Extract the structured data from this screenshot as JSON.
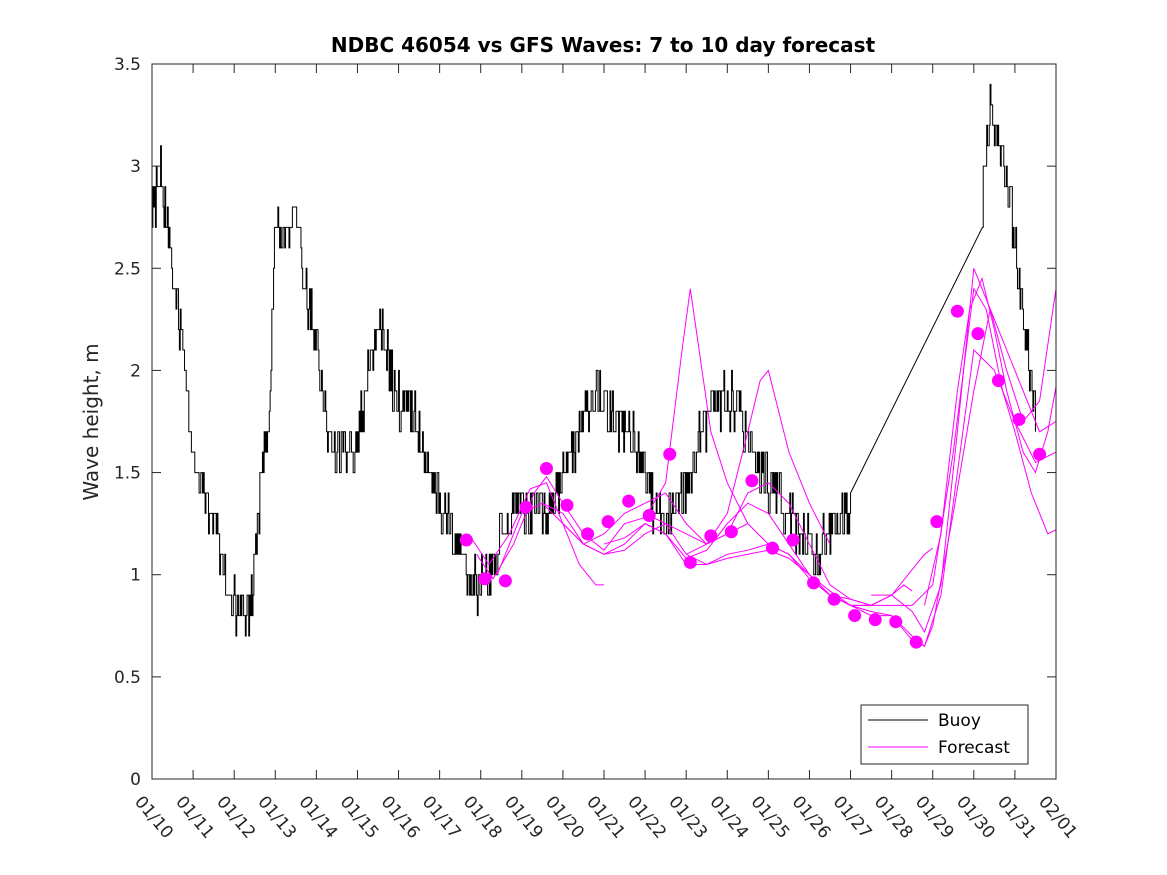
{
  "chart_data": {
    "type": "line",
    "title": "NDBC 46054 vs GFS Waves: 7 to 10 day forecast",
    "xlabel": "",
    "ylabel": "Wave height, m",
    "xlim": [
      0,
      22
    ],
    "ylim": [
      0,
      3.5
    ],
    "x_tick_values": [
      0,
      1,
      2,
      3,
      4,
      5,
      6,
      7,
      8,
      9,
      10,
      11,
      12,
      13,
      14,
      15,
      16,
      17,
      18,
      19,
      20,
      21,
      22
    ],
    "x_tick_labels": [
      "01/10",
      "01/11",
      "01/12",
      "01/13",
      "01/14",
      "01/15",
      "01/16",
      "01/17",
      "01/18",
      "01/19",
      "01/20",
      "01/21",
      "01/22",
      "01/23",
      "01/24",
      "01/25",
      "01/26",
      "01/27",
      "01/28",
      "01/29",
      "01/30",
      "01/31",
      "02/01"
    ],
    "y_tick_values": [
      0,
      0.5,
      1,
      1.5,
      2,
      2.5,
      3,
      3.5
    ],
    "y_tick_labels": [
      "0",
      "0.5",
      "1",
      "1.5",
      "2",
      "2.5",
      "3",
      "3.5"
    ],
    "legend": {
      "position": "bottom-right",
      "entries": [
        "Buoy",
        "Forecast"
      ]
    },
    "colors": {
      "buoy": "#000000",
      "forecast": "#ff00ff"
    },
    "buoy_anchors": {
      "x": [
        0.0,
        0.2,
        0.45,
        0.8,
        1.0,
        1.2,
        1.5,
        1.75,
        1.9,
        2.1,
        2.4,
        2.6,
        2.85,
        3.0,
        3.25,
        3.5,
        3.75,
        4.0,
        4.25,
        4.5,
        4.8,
        5.0,
        5.2,
        5.5,
        5.75,
        5.9,
        6.1,
        6.4,
        6.6,
        6.8,
        7.0,
        7.3,
        7.6,
        7.8,
        8.0,
        8.3,
        8.5,
        8.8,
        9.0,
        9.3,
        9.6,
        10.0,
        10.3,
        10.5,
        10.8,
        11.0,
        11.2,
        11.6,
        12.0,
        12.2,
        12.5,
        12.7,
        13.0,
        13.3,
        13.6,
        13.9,
        14.2,
        14.5,
        14.7,
        15.0,
        15.3,
        15.6,
        15.8,
        16.0,
        16.2,
        16.5,
        16.8,
        17.0,
        20.2,
        20.4,
        20.55,
        20.75,
        20.95,
        21.1,
        21.3,
        21.5
      ],
      "y": [
        2.75,
        3.0,
        2.55,
        2.05,
        1.6,
        1.45,
        1.25,
        1.05,
        0.9,
        0.8,
        0.85,
        1.3,
        1.8,
        2.75,
        2.65,
        2.75,
        2.35,
        2.15,
        1.7,
        1.6,
        1.6,
        1.65,
        1.9,
        2.25,
        2.05,
        1.85,
        1.85,
        1.75,
        1.6,
        1.45,
        1.35,
        1.25,
        1.05,
        0.95,
        0.95,
        1.05,
        1.2,
        1.35,
        1.3,
        1.25,
        1.3,
        1.45,
        1.6,
        1.75,
        1.9,
        1.85,
        1.75,
        1.7,
        1.5,
        1.35,
        1.25,
        1.3,
        1.45,
        1.65,
        1.8,
        1.85,
        1.85,
        1.7,
        1.55,
        1.45,
        1.35,
        1.25,
        1.2,
        1.15,
        1.1,
        1.2,
        1.3,
        1.3,
        2.8,
        3.35,
        3.15,
        3.0,
        2.7,
        2.4,
        2.1,
        1.8
      ],
      "noise_amplitude_m": 0.12,
      "resolution_m": 0.1
    },
    "forecast_series": [
      {
        "name": "Forecast",
        "x": [
          7.7,
          8.2,
          8.7,
          9.2,
          9.6,
          10.0,
          10.4,
          10.8,
          11.0
        ],
        "values": [
          1.2,
          1.05,
          1.2,
          1.42,
          1.45,
          1.25,
          1.05,
          0.95,
          0.95
        ]
      },
      {
        "name": "Forecast",
        "x": [
          7.9,
          8.3,
          8.8,
          9.3,
          9.6,
          10.0,
          10.5,
          11.0,
          11.5,
          12.0,
          12.5,
          12.9,
          13.1,
          13.6,
          14.0,
          14.5
        ],
        "values": [
          1.1,
          0.98,
          1.15,
          1.4,
          1.48,
          1.35,
          1.2,
          1.12,
          1.25,
          1.28,
          1.45,
          2.1,
          2.4,
          1.7,
          1.45,
          1.25
        ]
      },
      {
        "name": "Forecast",
        "x": [
          8.4,
          9.0,
          9.5,
          10.0,
          10.5,
          11.0,
          11.5,
          12.0,
          12.5,
          13.0,
          13.5,
          14.0,
          14.5,
          14.8,
          15.0,
          15.5,
          16.0,
          16.5
        ],
        "values": [
          1.0,
          1.3,
          1.35,
          1.3,
          1.15,
          1.1,
          1.12,
          1.2,
          1.25,
          1.2,
          1.15,
          1.3,
          1.7,
          1.95,
          2.0,
          1.6,
          1.35,
          1.15
        ]
      },
      {
        "name": "Forecast",
        "x": [
          9.5,
          10.0,
          10.5,
          11.0,
          11.5,
          12.0,
          12.5,
          13.0,
          13.5,
          14.0,
          14.5,
          15.0,
          15.5,
          16.0,
          16.5,
          17.0,
          17.5
        ],
        "values": [
          1.35,
          1.25,
          1.15,
          1.2,
          1.3,
          1.35,
          1.4,
          1.25,
          1.15,
          1.2,
          1.4,
          1.45,
          1.35,
          1.15,
          0.95,
          0.88,
          0.85
        ]
      },
      {
        "name": "Forecast",
        "x": [
          10.0,
          10.5,
          11.0,
          11.5,
          12.0,
          12.5,
          13.0,
          13.5,
          14.0,
          14.5,
          15.0,
          15.5,
          16.0,
          16.5,
          17.0,
          17.5,
          18.0,
          18.3,
          18.5
        ],
        "values": [
          1.25,
          1.15,
          1.1,
          1.15,
          1.25,
          1.2,
          1.08,
          1.12,
          1.25,
          1.35,
          1.3,
          1.15,
          1.0,
          0.9,
          0.85,
          0.85,
          0.9,
          0.95,
          0.92
        ]
      },
      {
        "name": "Forecast",
        "x": [
          11.0,
          11.5,
          12.0,
          12.5,
          13.0,
          13.5,
          14.0,
          14.5,
          15.0,
          15.5,
          16.0,
          16.5,
          17.0,
          17.5,
          18.0,
          18.5,
          18.8,
          19.0,
          19.5,
          20.0,
          20.4,
          20.8,
          21.2,
          21.6,
          22.0
        ],
        "values": [
          1.15,
          1.18,
          1.25,
          1.2,
          1.05,
          1.05,
          1.1,
          1.12,
          1.15,
          1.1,
          1.0,
          0.9,
          0.85,
          0.8,
          0.8,
          0.7,
          0.65,
          0.75,
          1.3,
          1.9,
          2.3,
          2.1,
          1.9,
          1.7,
          1.75
        ]
      },
      {
        "name": "Forecast",
        "x": [
          12.0,
          12.5,
          13.0,
          13.5,
          14.0,
          14.5,
          15.0,
          15.5,
          16.0,
          16.5,
          17.0,
          17.5,
          18.0,
          18.5,
          18.8,
          19.2,
          19.6,
          20.0,
          20.5,
          21.0,
          21.5,
          22.0
        ],
        "values": [
          1.3,
          1.25,
          1.1,
          1.05,
          1.08,
          1.1,
          1.12,
          1.08,
          1.0,
          0.92,
          0.85,
          0.82,
          0.8,
          0.68,
          0.65,
          0.9,
          1.5,
          2.1,
          2.0,
          1.75,
          1.55,
          1.6
        ]
      },
      {
        "name": "Forecast",
        "x": [
          13.0,
          13.5,
          14.0,
          14.5,
          15.0,
          15.5,
          16.0,
          16.5,
          17.0,
          17.5,
          18.0,
          18.4,
          18.8,
          19.0
        ],
        "values": [
          1.1,
          1.15,
          1.2,
          1.25,
          1.15,
          1.1,
          0.98,
          0.9,
          0.85,
          0.85,
          0.9,
          1.0,
          1.1,
          1.13
        ]
      },
      {
        "name": "Forecast",
        "x": [
          16.5,
          17.0,
          17.5,
          18.0,
          18.5,
          19.0,
          19.5,
          20.0,
          20.3,
          20.7,
          21.0,
          21.4,
          21.8,
          22.0
        ],
        "values": [
          0.9,
          0.88,
          0.85,
          0.85,
          0.85,
          0.95,
          1.6,
          2.4,
          2.3,
          1.9,
          1.7,
          1.4,
          1.2,
          1.22
        ]
      },
      {
        "name": "Forecast",
        "x": [
          17.5,
          18.0,
          18.5,
          18.8,
          19.2,
          19.6,
          20.0,
          20.4,
          20.8,
          21.2,
          21.6,
          22.0
        ],
        "values": [
          0.9,
          0.9,
          0.82,
          0.72,
          0.95,
          1.7,
          2.5,
          2.3,
          2.0,
          1.75,
          1.85,
          2.4
        ]
      },
      {
        "name": "Forecast",
        "x": [
          18.8,
          19.2,
          19.6,
          19.9,
          20.2,
          20.5,
          20.8,
          21.2,
          21.5,
          21.8,
          22.0
        ],
        "values": [
          0.85,
          1.2,
          1.9,
          2.3,
          2.45,
          2.2,
          1.9,
          1.6,
          1.5,
          1.7,
          1.92
        ]
      }
    ],
    "forecast_markers": {
      "x": [
        7.65,
        8.1,
        8.6,
        9.1,
        9.6,
        10.1,
        10.6,
        11.1,
        11.6,
        12.1,
        12.6,
        13.1,
        13.6,
        14.1,
        14.6,
        15.1,
        15.6,
        16.1,
        16.6,
        17.1,
        17.6,
        18.1,
        18.6,
        19.1,
        19.6,
        20.1,
        20.6,
        21.1,
        21.6
      ],
      "values": [
        1.17,
        0.98,
        0.97,
        1.33,
        1.52,
        1.34,
        1.2,
        1.26,
        1.36,
        1.29,
        1.59,
        1.06,
        1.19,
        1.21,
        1.46,
        1.13,
        1.17,
        0.96,
        0.88,
        0.8,
        0.78,
        0.77,
        0.67,
        1.26,
        2.29,
        2.18,
        1.95,
        1.76,
        1.59
      ]
    }
  }
}
